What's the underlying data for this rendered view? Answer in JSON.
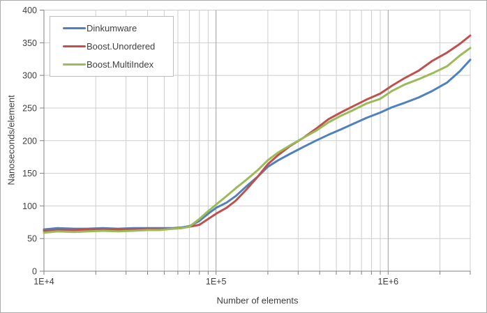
{
  "chart_data": {
    "type": "line",
    "title": "",
    "xlabel": "Number of elements",
    "ylabel": "Nanoseconds/element",
    "x_scale": "log10",
    "grid": true,
    "legend_position": "top-left",
    "xlim": [
      10000,
      3000000
    ],
    "ylim": [
      0,
      400
    ],
    "x_tick_labels": [
      "1E+4",
      "1E+5",
      "1E+6"
    ],
    "x_tick_values": [
      10000,
      100000,
      1000000
    ],
    "y_tick_labels": [
      "0",
      "50",
      "100",
      "150",
      "200",
      "250",
      "300",
      "350",
      "400"
    ],
    "y_tick_values": [
      0,
      50,
      100,
      150,
      200,
      250,
      300,
      350,
      400
    ],
    "x": [
      10000,
      12000,
      15000,
      18000,
      22000,
      27000,
      33000,
      40000,
      47000,
      56000,
      63000,
      70000,
      80000,
      90000,
      100000,
      115000,
      130000,
      150000,
      175000,
      200000,
      230000,
      270000,
      320000,
      380000,
      450000,
      530000,
      630000,
      750000,
      900000,
      1050000,
      1250000,
      1500000,
      1800000,
      2200000,
      2600000,
      3000000
    ],
    "series": [
      {
        "name": "Dinkumware",
        "color": "#4F81BD",
        "values": [
          64,
          66,
          65,
          65,
          66,
          65,
          66,
          66,
          66,
          66,
          67,
          69,
          77,
          88,
          97,
          105,
          115,
          130,
          145,
          160,
          170,
          180,
          190,
          200,
          209,
          217,
          226,
          235,
          243,
          251,
          258,
          266,
          276,
          289,
          306,
          324
        ]
      },
      {
        "name": "Boost.Unordered",
        "color": "#C0504D",
        "values": [
          62,
          63,
          63,
          64,
          64,
          64,
          64,
          65,
          65,
          65,
          66,
          68,
          71,
          80,
          88,
          97,
          108,
          125,
          145,
          164,
          178,
          192,
          204,
          218,
          233,
          243,
          253,
          263,
          272,
          284,
          296,
          307,
          322,
          335,
          348,
          361
        ]
      },
      {
        "name": "Boost.MultiIndex",
        "color": "#9BBB59",
        "values": [
          59,
          61,
          60,
          61,
          62,
          61,
          62,
          63,
          63,
          65,
          66,
          68,
          80,
          92,
          102,
          115,
          127,
          140,
          155,
          170,
          182,
          193,
          204,
          215,
          228,
          238,
          247,
          257,
          264,
          276,
          286,
          294,
          303,
          314,
          330,
          342
        ]
      }
    ]
  },
  "colors": {
    "minor_grid": "#cdcdcd",
    "major_grid": "#9e9e9e",
    "axis": "#808080",
    "text": "#3f3f3f",
    "legend_border": "#bdbdbd",
    "frame_border": "#ababab",
    "background": "#ffffff"
  }
}
